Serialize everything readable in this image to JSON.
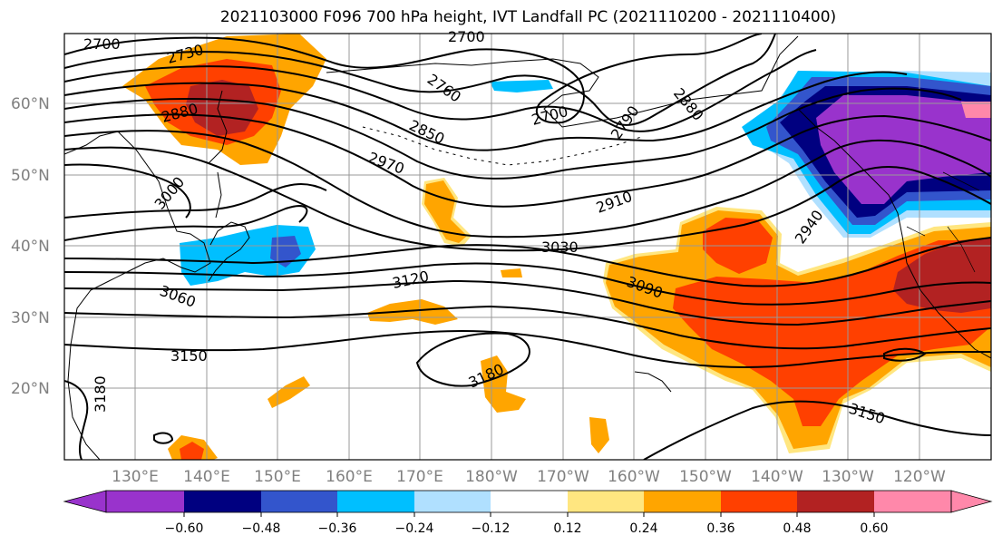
{
  "title": "2021103000 F096 700 hPa height, IVT Landfall PC (2021110200 - 2021110400)",
  "lat_labels": [
    "60°N",
    "50°N",
    "40°N",
    "30°N",
    "20°N"
  ],
  "lon_labels": [
    "130°E",
    "140°E",
    "150°E",
    "160°E",
    "170°E",
    "180°W",
    "170°W",
    "160°W",
    "150°W",
    "140°W",
    "130°W",
    "120°W"
  ],
  "contour_labels": [
    "2700",
    "2730",
    "2700",
    "2760",
    "2700",
    "2880",
    "2850",
    "2790",
    "2880",
    "2970",
    "3000",
    "2910",
    "2940",
    "3030",
    "3120",
    "3060",
    "3090",
    "3150",
    "3180",
    "3180",
    "3150"
  ],
  "colorbar": {
    "tick_labels": [
      "−0.60",
      "−0.48",
      "−0.36",
      "−0.24",
      "−0.12",
      "0.12",
      "0.24",
      "0.36",
      "0.48",
      "0.60"
    ],
    "colors": [
      "#9933cc",
      "#000080",
      "#3355cc",
      "#00bfff",
      "#b0e0ff",
      "#ffffff",
      "#ffe680",
      "#ffa500",
      "#ff4000",
      "#b22222",
      "#ff88aa"
    ]
  },
  "shading_colors": {
    "purple": "#9933cc",
    "navy": "#000080",
    "blue": "#3355cc",
    "cyan": "#00bfff",
    "lightblue": "#b0e0ff",
    "yellow": "#ffe680",
    "orange": "#ffa500",
    "redorange": "#ff4000",
    "darkred": "#b22222"
  }
}
